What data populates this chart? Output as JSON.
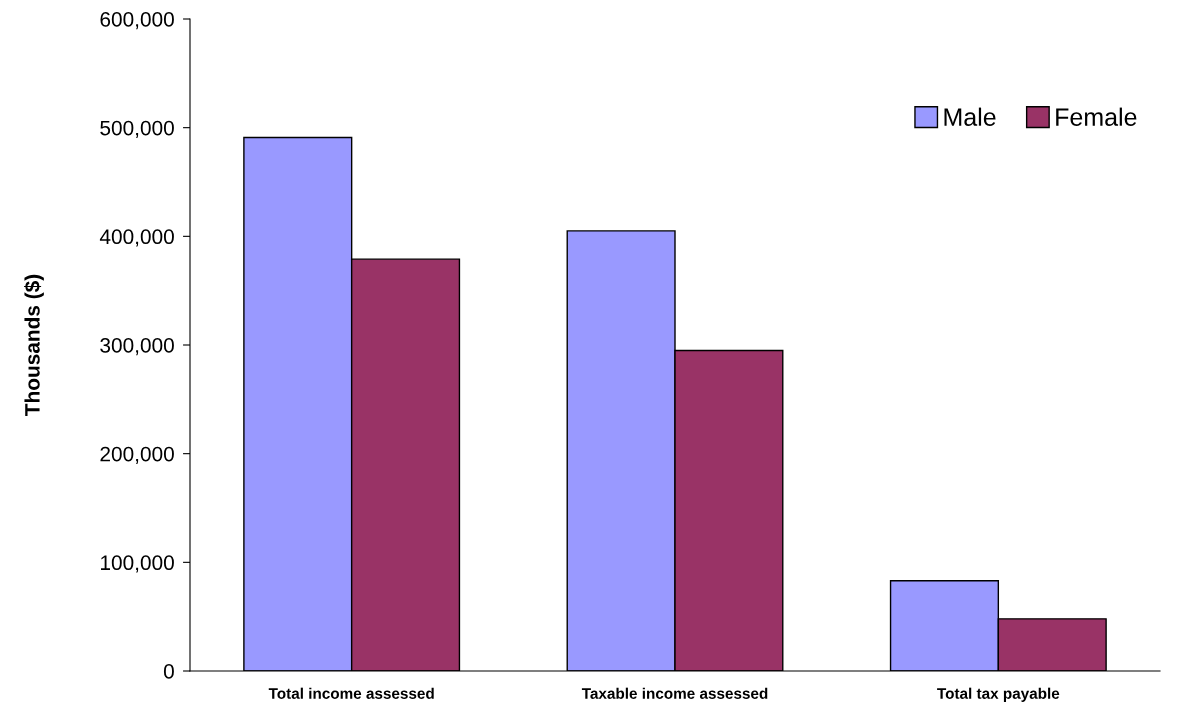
{
  "chart_data": {
    "type": "bar",
    "ylabel": "Thousands ($)",
    "categories": [
      "Total income assessed",
      "Taxable income assessed",
      "Total tax payable"
    ],
    "series": [
      {
        "name": "Male",
        "color": "#9999ff",
        "values": [
          491000,
          405000,
          83000
        ]
      },
      {
        "name": "Female",
        "color": "#993366",
        "values": [
          379000,
          295000,
          48000
        ]
      }
    ],
    "ylim": [
      0,
      600000
    ],
    "yticks": [
      {
        "value": 0,
        "label": "0"
      },
      {
        "value": 100000,
        "label": "100,000"
      },
      {
        "value": 200000,
        "label": "200,000"
      },
      {
        "value": 300000,
        "label": "300,000"
      },
      {
        "value": 400000,
        "label": "400,000"
      },
      {
        "value": 500000,
        "label": "500,000"
      },
      {
        "value": 600000,
        "label": "600,000"
      }
    ],
    "grid": false,
    "legend": "top right"
  }
}
